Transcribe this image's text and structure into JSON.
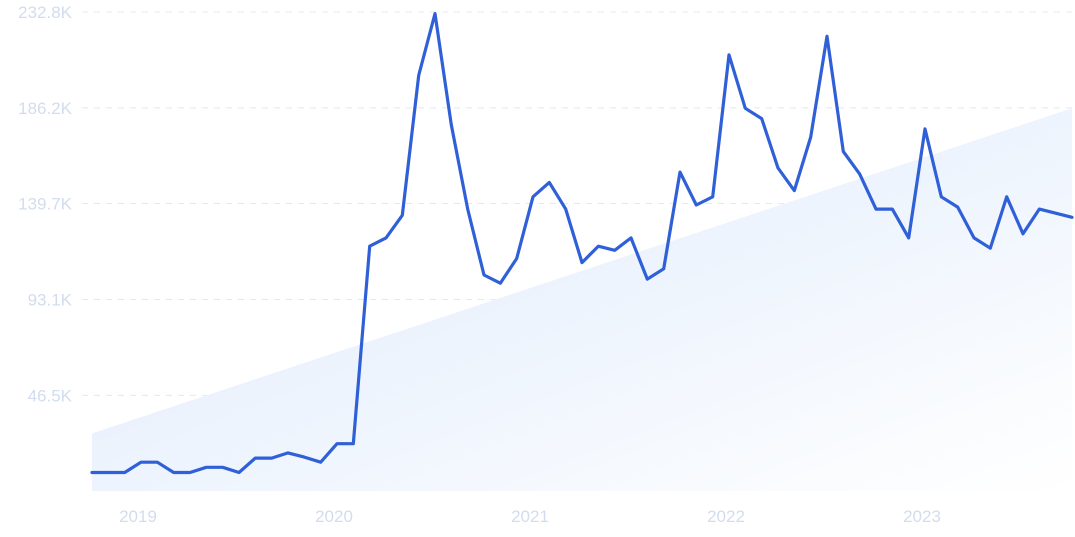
{
  "chart_data": {
    "type": "line",
    "title": "",
    "xlabel": "",
    "ylabel": "",
    "grid": "horizontal-dashed",
    "legend": "none",
    "ylim": [
      0,
      232800
    ],
    "y_ticks": [
      "46.5K",
      "93.1K",
      "139.7K",
      "186.2K",
      "232.8K"
    ],
    "y_tick_values": [
      46500,
      93100,
      139700,
      186200,
      232800
    ],
    "x_ticks": [
      "2019",
      "2020",
      "2021",
      "2022",
      "2023"
    ],
    "x_tick_values": [
      2019.0,
      2020.0,
      2021.0,
      2022.0,
      2023.0
    ],
    "xlim": [
      2018.75,
      2023.75
    ],
    "colors": {
      "line": "#3060d8",
      "trend_start": "#dce9fb",
      "trend_end": "#ffffff"
    },
    "series": [
      {
        "x": [
          2018.75,
          2018.833,
          2018.917,
          2019.0,
          2019.083,
          2019.167,
          2019.25,
          2019.333,
          2019.417,
          2019.5,
          2019.583,
          2019.667,
          2019.75,
          2019.833,
          2019.917,
          2020.0,
          2020.083,
          2020.167,
          2020.25,
          2020.333,
          2020.417,
          2020.5,
          2020.583,
          2020.667,
          2020.75,
          2020.833,
          2020.917,
          2021.0,
          2021.083,
          2021.167,
          2021.25,
          2021.333,
          2021.417,
          2021.5,
          2021.583,
          2021.667,
          2021.75,
          2021.833,
          2021.917,
          2022.0,
          2022.083,
          2022.167,
          2022.25,
          2022.333,
          2022.417,
          2022.5,
          2022.583,
          2022.667,
          2022.75,
          2022.833,
          2022.917,
          2023.0,
          2023.083,
          2023.167,
          2023.25,
          2023.333,
          2023.417,
          2023.5,
          2023.583,
          2023.667,
          2023.75
        ],
        "values": [
          9000,
          9000,
          9000,
          14000,
          14000,
          9000,
          9000,
          11500,
          11500,
          9000,
          16000,
          16000,
          18500,
          16500,
          14000,
          23000,
          23000,
          119000,
          123000,
          134000,
          202000,
          232000,
          178000,
          137000,
          105000,
          101000,
          113000,
          143000,
          150000,
          137000,
          111000,
          119000,
          117000,
          123000,
          103000,
          108000,
          155000,
          139000,
          143000,
          212000,
          186000,
          181000,
          157000,
          146000,
          172000,
          221000,
          165000,
          154000,
          137000,
          137000,
          123000,
          176000,
          143000,
          138000,
          123000,
          118000,
          143000,
          125000,
          137000,
          135000,
          133000
        ]
      }
    ],
    "trend": {
      "x": [
        2018.75,
        2023.75
      ],
      "values": [
        28000,
        186000
      ]
    }
  }
}
